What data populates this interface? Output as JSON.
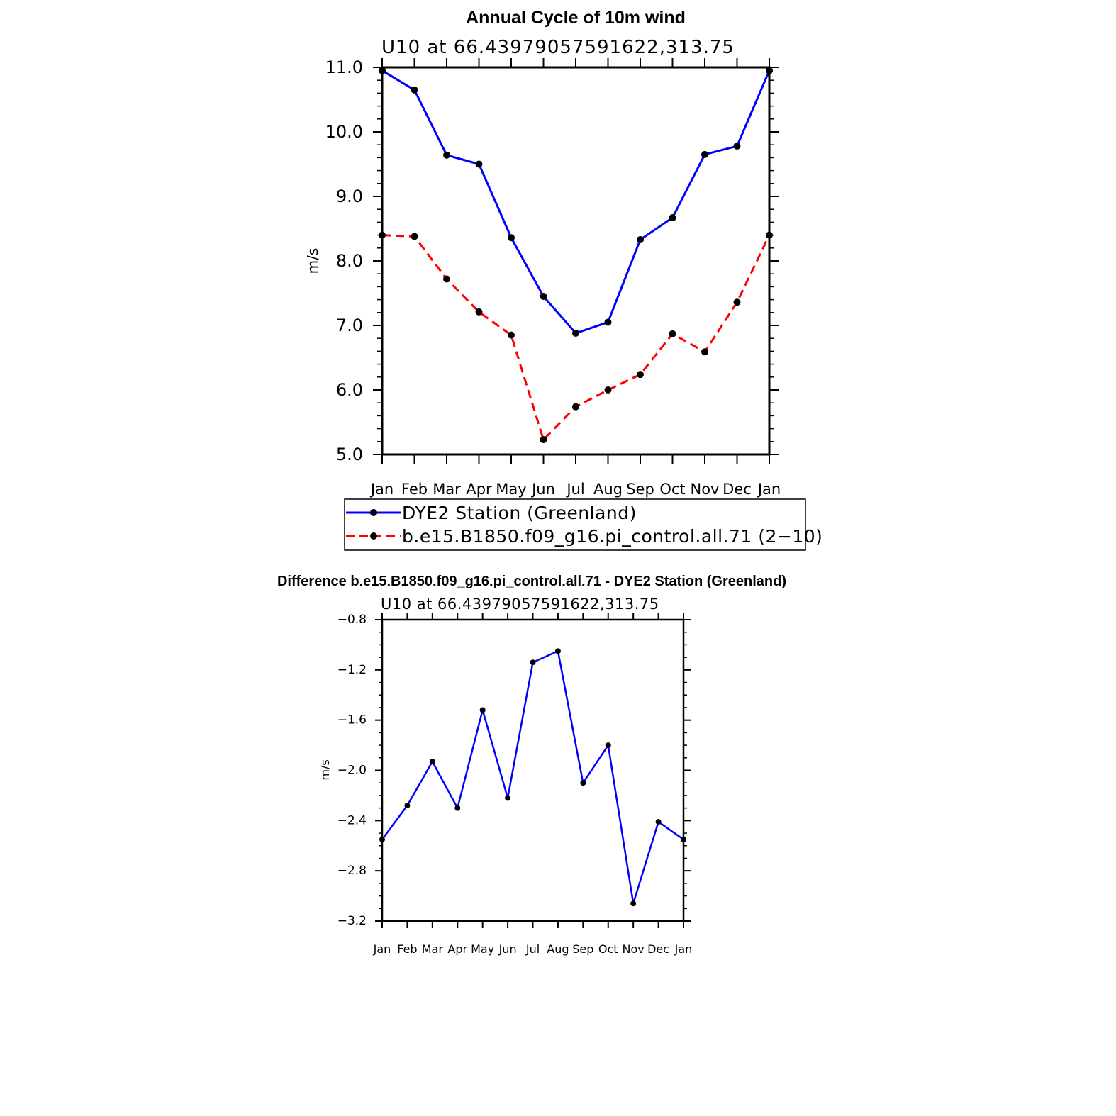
{
  "chart_data": [
    {
      "type": "line",
      "title": "Annual Cycle of 10m wind",
      "subtitle": "U10 at 66.43979057591622,313.75",
      "xlabel": "",
      "ylabel": "m/s",
      "categories": [
        "Jan",
        "Feb",
        "Mar",
        "Apr",
        "May",
        "Jun",
        "Jul",
        "Aug",
        "Sep",
        "Oct",
        "Nov",
        "Dec",
        "Jan"
      ],
      "ylim": [
        5.0,
        11.0
      ],
      "yticks": [
        5.0,
        6.0,
        7.0,
        8.0,
        9.0,
        10.0,
        11.0
      ],
      "ytick_labels": [
        "5.0",
        "6.0",
        "7.0",
        "8.0",
        "9.0",
        "10.0",
        "11.0"
      ],
      "grid": false,
      "legend_position": "below",
      "series": [
        {
          "name": "DYE2 Station (Greenland)",
          "color": "#0000ff",
          "dash": "solid",
          "values": [
            10.95,
            10.65,
            9.64,
            9.5,
            8.36,
            7.45,
            6.88,
            7.05,
            8.33,
            8.67,
            9.65,
            9.78,
            10.95
          ]
        },
        {
          "name": "b.e15.B1850.f09_g16.pi_control.all.71 (2−10)",
          "color": "#ff0000",
          "dash": "dashed",
          "values": [
            8.4,
            8.38,
            7.72,
            7.21,
            6.85,
            5.23,
            5.74,
            6.0,
            6.24,
            6.87,
            6.59,
            7.36,
            8.4
          ]
        }
      ]
    },
    {
      "type": "line",
      "title": "Difference b.e15.B1850.f09_g16.pi_control.all.71 - DYE2 Station (Greenland)",
      "subtitle": "U10 at 66.43979057591622,313.75",
      "xlabel": "",
      "ylabel": "m/s",
      "categories": [
        "Jan",
        "Feb",
        "Mar",
        "Apr",
        "May",
        "Jun",
        "Jul",
        "Aug",
        "Sep",
        "Oct",
        "Nov",
        "Dec",
        "Jan"
      ],
      "ylim": [
        -3.2,
        -0.8
      ],
      "yticks": [
        -3.2,
        -2.8,
        -2.4,
        -2.0,
        -1.6,
        -1.2,
        -0.8
      ],
      "ytick_labels": [
        "−3.2",
        "−2.8",
        "−2.4",
        "−2.0",
        "−1.6",
        "−1.2",
        "−0.8"
      ],
      "grid": false,
      "series": [
        {
          "color": "#0000ff",
          "dash": "solid",
          "values": [
            -2.55,
            -2.28,
            -1.93,
            -2.3,
            -1.52,
            -2.22,
            -1.14,
            -1.05,
            -2.1,
            -1.8,
            -3.06,
            -2.41,
            -2.55
          ]
        }
      ]
    }
  ]
}
